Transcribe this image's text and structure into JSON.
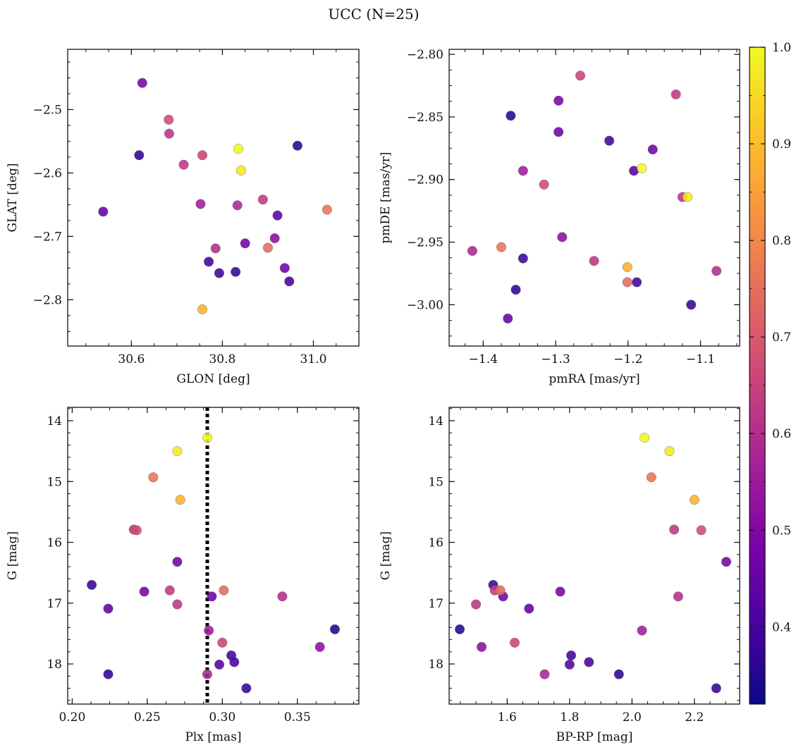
{
  "title": "UCC (N=25)",
  "colorbar": {
    "range": [
      0.32,
      1.0
    ],
    "ticks": [
      0.4,
      0.5,
      0.6,
      0.7,
      0.8,
      0.9,
      1.0
    ],
    "tick_labels": [
      "0.4",
      "0.5",
      "0.6",
      "0.7",
      "0.8",
      "0.9",
      "1.0"
    ],
    "colormap": "plasma"
  },
  "stars": [
    {
      "glon": 30.835,
      "glat": -2.562,
      "pmra": -1.181,
      "pmde": -2.891,
      "plx": 0.29,
      "g": 14.28,
      "bprp": 2.04,
      "p": 1.0
    },
    {
      "glon": 30.841,
      "glat": -2.596,
      "pmra": -1.118,
      "pmde": -2.914,
      "plx": 0.27,
      "g": 14.5,
      "bprp": 2.12,
      "p": 0.97
    },
    {
      "glon": 30.756,
      "glat": -2.815,
      "pmra": -1.201,
      "pmde": -2.97,
      "plx": 0.272,
      "g": 15.3,
      "bprp": 2.2,
      "p": 0.88
    },
    {
      "glon": 31.03,
      "glat": -2.658,
      "pmra": -1.375,
      "pmde": -2.954,
      "plx": 0.254,
      "g": 14.93,
      "bprp": 2.062,
      "p": 0.76
    },
    {
      "glon": 30.9,
      "glat": -2.718,
      "pmra": -1.201,
      "pmde": -2.982,
      "plx": 0.301,
      "g": 16.79,
      "bprp": 1.578,
      "p": 0.74
    },
    {
      "glon": 30.682,
      "glat": -2.516,
      "pmra": -1.316,
      "pmde": -2.904,
      "plx": 0.243,
      "g": 15.8,
      "bprp": 2.222,
      "p": 0.67
    },
    {
      "glon": 30.756,
      "glat": -2.572,
      "pmra": -1.266,
      "pmde": -2.817,
      "plx": 0.3,
      "g": 17.65,
      "bprp": 1.624,
      "p": 0.65
    },
    {
      "glon": 30.889,
      "glat": -2.642,
      "pmra": -1.134,
      "pmde": -2.832,
      "plx": 0.265,
      "g": 16.79,
      "bprp": 1.56,
      "p": 0.63
    },
    {
      "glon": 30.715,
      "glat": -2.587,
      "pmra": -1.247,
      "pmde": -2.965,
      "plx": 0.27,
      "g": 17.02,
      "bprp": 1.5,
      "p": 0.62
    },
    {
      "glon": 30.683,
      "glat": -2.538,
      "pmra": -1.125,
      "pmde": -2.914,
      "plx": 0.241,
      "g": 15.79,
      "bprp": 2.135,
      "p": 0.62
    },
    {
      "glon": 30.785,
      "glat": -2.719,
      "pmra": -1.078,
      "pmde": -2.973,
      "plx": 0.34,
      "g": 16.89,
      "bprp": 2.148,
      "p": 0.6
    },
    {
      "glon": 30.833,
      "glat": -2.651,
      "pmra": -1.415,
      "pmde": -2.957,
      "plx": 0.29,
      "g": 18.17,
      "bprp": 1.72,
      "p": 0.58
    },
    {
      "glon": 30.752,
      "glat": -2.649,
      "pmra": -1.345,
      "pmde": -2.893,
      "plx": 0.291,
      "g": 17.45,
      "bprp": 2.032,
      "p": 0.56
    },
    {
      "glon": 30.915,
      "glat": -2.703,
      "pmra": -1.291,
      "pmde": -2.946,
      "plx": 0.365,
      "g": 17.72,
      "bprp": 1.518,
      "p": 0.52
    },
    {
      "glon": 30.624,
      "glat": -2.458,
      "pmra": -1.296,
      "pmde": -2.837,
      "plx": 0.248,
      "g": 16.81,
      "bprp": 1.77,
      "p": 0.48
    },
    {
      "glon": 30.85,
      "glat": -2.711,
      "pmra": -1.166,
      "pmde": -2.876,
      "plx": 0.27,
      "g": 16.32,
      "bprp": 2.302,
      "p": 0.47
    },
    {
      "glon": 30.937,
      "glat": -2.75,
      "pmra": -1.296,
      "pmde": -2.862,
      "plx": 0.293,
      "g": 16.89,
      "bprp": 1.587,
      "p": 0.46
    },
    {
      "glon": 30.538,
      "glat": -2.661,
      "pmra": -1.366,
      "pmde": -3.011,
      "plx": 0.224,
      "g": 17.09,
      "bprp": 1.67,
      "p": 0.44
    },
    {
      "glon": 30.921,
      "glat": -2.667,
      "pmra": -1.192,
      "pmde": -2.893,
      "plx": 0.298,
      "g": 18.01,
      "bprp": 1.8,
      "p": 0.42
    },
    {
      "glon": 30.947,
      "glat": -2.771,
      "pmra": -1.226,
      "pmde": -2.869,
      "plx": 0.308,
      "g": 17.97,
      "bprp": 1.862,
      "p": 0.4
    },
    {
      "glon": 30.77,
      "glat": -2.74,
      "pmra": -1.188,
      "pmde": -2.982,
      "plx": 0.306,
      "g": 17.86,
      "bprp": 1.805,
      "p": 0.39
    },
    {
      "glon": 30.793,
      "glat": -2.758,
      "pmra": -1.345,
      "pmde": -2.963,
      "plx": 0.213,
      "g": 16.7,
      "bprp": 1.555,
      "p": 0.38
    },
    {
      "glon": 30.829,
      "glat": -2.756,
      "pmra": -1.113,
      "pmde": -3.0,
      "plx": 0.316,
      "g": 18.4,
      "bprp": 2.27,
      "p": 0.37
    },
    {
      "glon": 30.617,
      "glat": -2.572,
      "pmra": -1.355,
      "pmde": -2.988,
      "plx": 0.224,
      "g": 18.17,
      "bprp": 1.958,
      "p": 0.36
    },
    {
      "glon": 30.965,
      "glat": -2.557,
      "pmra": -1.362,
      "pmde": -2.849,
      "plx": 0.375,
      "g": 17.43,
      "bprp": 1.448,
      "p": 0.35
    }
  ],
  "panels": [
    {
      "id": "glon-glat",
      "x": "glon",
      "y": "glat",
      "xlabel": "GLON [deg]",
      "ylabel": "GLAT [deg]",
      "xlim": [
        30.46,
        31.1
      ],
      "ylim": [
        -2.873,
        -2.405
      ],
      "invert_y": false,
      "xticks": [
        30.6,
        30.8,
        31.0
      ],
      "xtick_labels": [
        "30.6",
        "30.8",
        "31.0"
      ],
      "yticks": [
        -2.5,
        -2.6,
        -2.7,
        -2.8
      ],
      "ytick_labels": [
        "−2.5",
        "−2.6",
        "−2.7",
        "−2.8"
      ]
    },
    {
      "id": "pm",
      "x": "pmra",
      "y": "pmde",
      "xlabel": "pmRA [mas/yr]",
      "ylabel": "pmDE [mas/yr]",
      "xlim": [
        -1.447,
        -1.046
      ],
      "ylim": [
        -3.033,
        -2.796
      ],
      "invert_y": false,
      "xticks": [
        -1.4,
        -1.3,
        -1.2,
        -1.1
      ],
      "xtick_labels": [
        "−1.4",
        "−1.3",
        "−1.2",
        "−1.1"
      ],
      "yticks": [
        -2.8,
        -2.85,
        -2.9,
        -2.95,
        -3.0
      ],
      "ytick_labels": [
        "−2.80",
        "−2.85",
        "−2.90",
        "−2.95",
        "−3.00"
      ]
    },
    {
      "id": "plx-g",
      "x": "plx",
      "y": "g",
      "xlabel": "Plx [mas]",
      "ylabel": "G [mag]",
      "xlim": [
        0.197,
        0.391
      ],
      "ylim": [
        13.78,
        18.66
      ],
      "invert_y": true,
      "xticks": [
        0.2,
        0.25,
        0.3,
        0.35
      ],
      "xtick_labels": [
        "0.20",
        "0.25",
        "0.30",
        "0.35"
      ],
      "yticks": [
        14,
        15,
        16,
        17,
        18
      ],
      "ytick_labels": [
        "14",
        "15",
        "16",
        "17",
        "18"
      ],
      "vline": {
        "x": 0.29,
        "style": "dotted"
      }
    },
    {
      "id": "cmd",
      "x": "bprp",
      "y": "g",
      "xlabel": "BP-RP [mag]",
      "ylabel": "G [mag]",
      "xlim": [
        1.414,
        2.345
      ],
      "ylim": [
        13.78,
        18.66
      ],
      "invert_y": true,
      "xticks": [
        1.6,
        1.8,
        2.0,
        2.2
      ],
      "xtick_labels": [
        "1.6",
        "1.8",
        "2.0",
        "2.2"
      ],
      "yticks": [
        14,
        15,
        16,
        17,
        18
      ],
      "ytick_labels": [
        "14",
        "15",
        "16",
        "17",
        "18"
      ]
    }
  ]
}
